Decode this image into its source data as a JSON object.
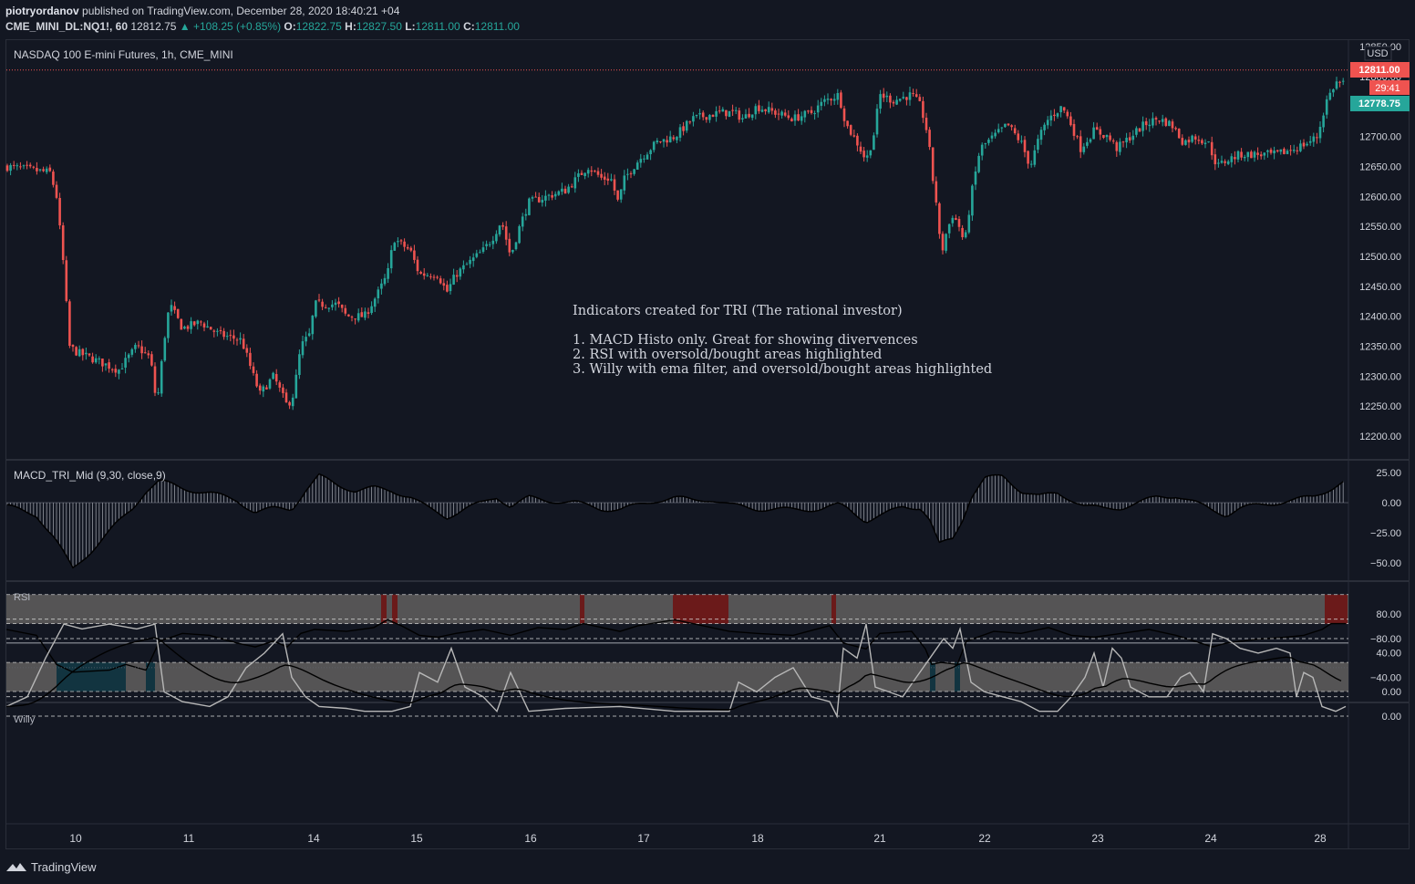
{
  "header": {
    "author": "piotryordanov",
    "published_text": "published on TradingView.com, December 28, 2020 18:40:21 +04",
    "symbol": "CME_MINI_DL:NQ1!, 60",
    "price": "12812.75",
    "change": "▲ +108.25 (+0.85%)",
    "o_label": "O:",
    "o_value": "12822.75",
    "h_label": "H:",
    "h_value": "12827.50",
    "l_label": "L:",
    "l_value": "12811.00",
    "c_label": "C:",
    "c_value": "12811.00"
  },
  "main_pane": {
    "title": "NASDAQ 100 E-mini Futures, 1h, CME_MINI",
    "currency": "USD",
    "price_tag_last": "12811.00",
    "price_tag_countdown": "29:41",
    "price_tag_other": "12778.75",
    "y_ticks": [
      "12850.00",
      "12800.00",
      "12750.00",
      "12700.00",
      "12650.00",
      "12600.00",
      "12550.00",
      "12500.00",
      "12450.00",
      "12400.00",
      "12350.00",
      "12300.00",
      "12250.00",
      "12200.00"
    ],
    "annotation_lines": [
      "Indicators created for TRI (The rational investor)",
      "",
      "1. MACD Histo only. Great for showing divervences",
      "2. RSI with oversold/bought areas highlighted",
      "3. Willy with ema filter, and oversold/bought areas highlighted"
    ]
  },
  "macd_pane": {
    "title": "MACD_TRI_Mid (9,30, close,9)",
    "y_ticks": [
      "25.00",
      "0.00",
      "−25.00",
      "−50.00"
    ]
  },
  "rsi_pane": {
    "title": "RSI",
    "y_ticks": [
      "80.00",
      "40.00",
      "0.00"
    ]
  },
  "willy_pane": {
    "title": "Willy",
    "y_ticks": [
      "0.00",
      "−40.00",
      "−80.00"
    ]
  },
  "x_axis": {
    "labels": [
      "10",
      "11",
      "14",
      "15",
      "16",
      "17",
      "18",
      "21",
      "22",
      "23",
      "24",
      "28"
    ]
  },
  "footer": {
    "brand": "TradingView"
  },
  "colors": {
    "background": "#131722",
    "up": "#26a69a",
    "down": "#ef5350",
    "band_gray": "#5d5b5b",
    "band_red": "#6b1a1a",
    "band_teal": "#123440"
  }
}
